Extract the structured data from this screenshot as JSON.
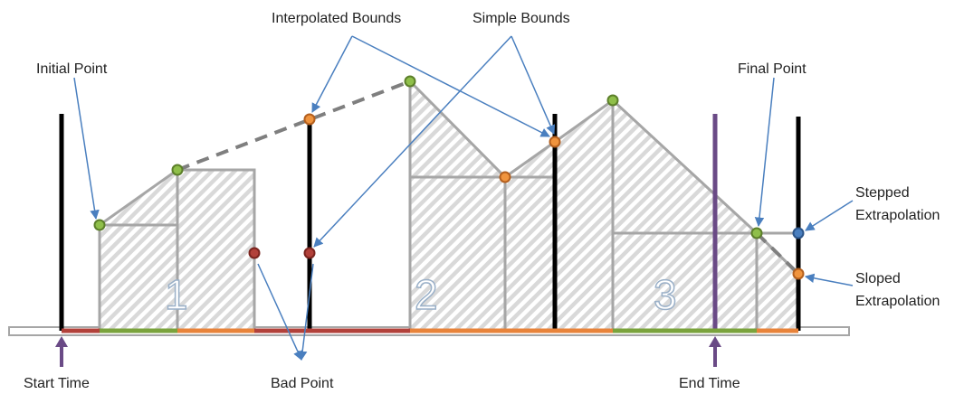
{
  "labels": {
    "interpolated_bounds": "Interpolated Bounds",
    "simple_bounds": "Simple Bounds",
    "initial_point": "Initial Point",
    "final_point": "Final Point",
    "stepped_extrapolation_1": "Stepped",
    "stepped_extrapolation_2": "Extrapolation",
    "sloped_extrapolation_1": "Sloped",
    "sloped_extrapolation_2": "Extrapolation",
    "start_time": "Start Time",
    "bad_point": "Bad Point",
    "end_time": "End Time"
  },
  "regions": [
    "1",
    "2",
    "3"
  ],
  "colors": {
    "good_point": "#7aa33c",
    "bound_point": "#e8833a",
    "bad_point": "#a83a32",
    "extrapolated_point": "#3f6ea8",
    "segment_green": "#7aa33c",
    "segment_orange": "#e8833a",
    "segment_red": "#b2413a",
    "time_marker": "#6a4a86",
    "callout_arrow": "#4a7fbf",
    "outline": "#a6a6a6",
    "dashed": "#7f7f7f"
  }
}
